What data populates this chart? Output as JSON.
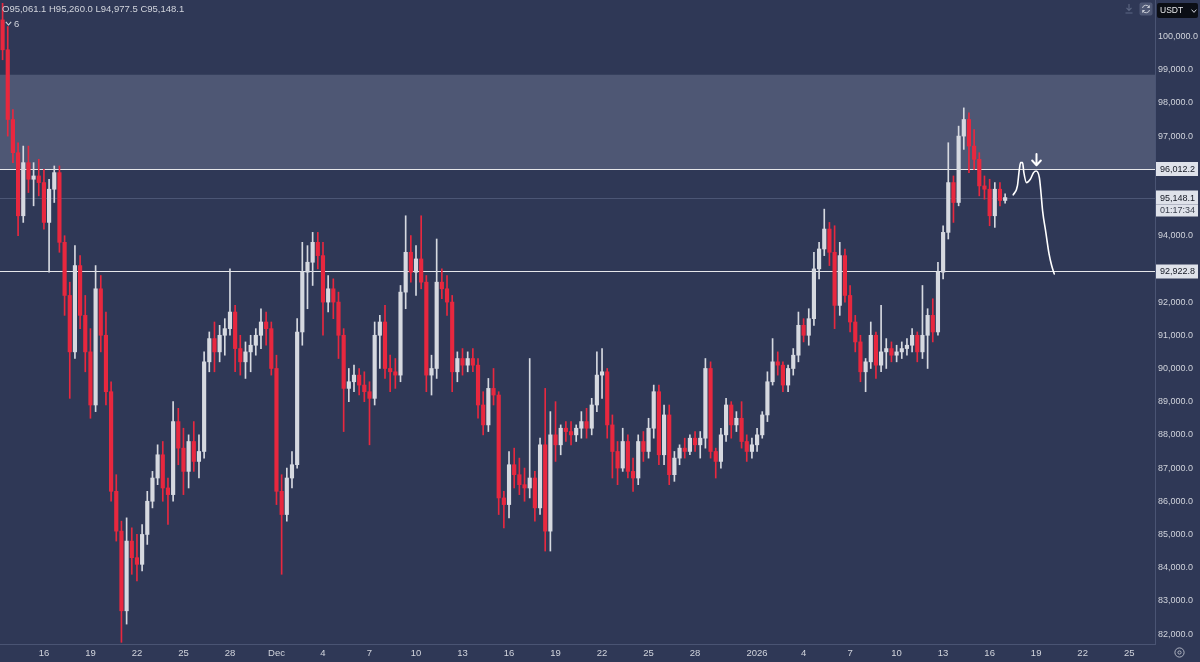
{
  "chart_data": {
    "type": "candlestick",
    "ylabel": "USDT",
    "annotations": [
      "O95,061.1 H95,260.0 L94,977.5 C95,148.1",
      "6",
      {
        "text": "01:17:34",
        "y": 95148.1
      }
    ],
    "xlim": [
      "2025-11-13T04:00",
      "2026-01-26T16:00"
    ],
    "xticks": [
      {
        "value": "2025-11-16",
        "label": "16"
      },
      {
        "value": "2025-11-19",
        "label": "19"
      },
      {
        "value": "2025-11-22",
        "label": "22"
      },
      {
        "value": "2025-11-25",
        "label": "25"
      },
      {
        "value": "2025-11-28",
        "label": "28"
      },
      {
        "value": "2025-12-01",
        "label": "Dec"
      },
      {
        "value": "2025-12-04",
        "label": "4"
      },
      {
        "value": "2025-12-07",
        "label": "7"
      },
      {
        "value": "2025-12-10",
        "label": "10"
      },
      {
        "value": "2025-12-13",
        "label": "13"
      },
      {
        "value": "2025-12-16",
        "label": "16"
      },
      {
        "value": "2025-12-19",
        "label": "19"
      },
      {
        "value": "2025-12-22",
        "label": "22"
      },
      {
        "value": "2025-12-25",
        "label": "25"
      },
      {
        "value": "2025-12-28",
        "label": "28"
      },
      {
        "value": "2026-01-01",
        "label": "2026"
      },
      {
        "value": "2026-01-04",
        "label": "4"
      },
      {
        "value": "2026-01-07",
        "label": "7"
      },
      {
        "value": "2026-01-10",
        "label": "10"
      },
      {
        "value": "2026-01-13",
        "label": "13"
      },
      {
        "value": "2026-01-16",
        "label": "16"
      },
      {
        "value": "2026-01-19",
        "label": "19"
      },
      {
        "value": "2026-01-22",
        "label": "22"
      },
      {
        "value": "2026-01-25",
        "label": "25"
      }
    ],
    "ylim": [
      81700,
      101100
    ],
    "yticks": [
      {
        "value": 82000,
        "label": "82,000.0"
      },
      {
        "value": 83000,
        "label": "83,000.0"
      },
      {
        "value": 84000,
        "label": "84,000.0"
      },
      {
        "value": 85000,
        "label": "85,000.0"
      },
      {
        "value": 86000,
        "label": "86,000.0"
      },
      {
        "value": 87000,
        "label": "87,000.0"
      },
      {
        "value": 88000,
        "label": "88,000.0"
      },
      {
        "value": 89000,
        "label": "89,000.0"
      },
      {
        "value": 90000,
        "label": "90,000.0"
      },
      {
        "value": 91000,
        "label": "91,000.0"
      },
      {
        "value": 92000,
        "label": "92,000.0"
      },
      {
        "value": 94000,
        "label": "94,000.0"
      },
      {
        "value": 97000,
        "label": "97,000.0"
      },
      {
        "value": 98000,
        "label": "98,000.0"
      },
      {
        "value": 99000,
        "label": "99,000.0"
      },
      {
        "value": 100000,
        "label": "100,000.0"
      }
    ],
    "bands": [
      {
        "axis": "y",
        "from": 96012.2,
        "to": 98850,
        "color": "#4e5774"
      }
    ],
    "ref_lines": [
      {
        "axis": "y",
        "value": 96012.2,
        "label": "96,012.2",
        "color": "#e6e7ea"
      },
      {
        "axis": "y",
        "value": 95148.1,
        "label": "95,148.1",
        "color": "#4c5675"
      },
      {
        "axis": "y",
        "value": 92922.8,
        "label": "92,922.8",
        "color": "#e6e7ea"
      }
    ],
    "series": [
      {
        "x": [
          "2025-11-13T08:00",
          "2025-11-13T16:00",
          "2025-11-14T00:00",
          "2025-11-14T08:00",
          "2025-11-14T16:00",
          "2025-11-15T00:00",
          "2025-11-15T08:00",
          "2025-11-15T16:00",
          "2025-11-16T00:00",
          "2025-11-16T08:00",
          "2025-11-16T16:00",
          "2025-11-17T00:00",
          "2025-11-17T08:00",
          "2025-11-17T16:00",
          "2025-11-18T00:00",
          "2025-11-18T08:00",
          "2025-11-18T16:00",
          "2025-11-19T00:00",
          "2025-11-19T08:00",
          "2025-11-19T16:00",
          "2025-11-20T00:00",
          "2025-11-20T08:00",
          "2025-11-20T16:00",
          "2025-11-21T00:00",
          "2025-11-21T08:00",
          "2025-11-21T16:00",
          "2025-11-22T00:00",
          "2025-11-22T08:00",
          "2025-11-22T16:00",
          "2025-11-23T00:00",
          "2025-11-23T08:00",
          "2025-11-23T16:00",
          "2025-11-24T00:00",
          "2025-11-24T08:00",
          "2025-11-24T16:00",
          "2025-11-25T00:00",
          "2025-11-25T08:00",
          "2025-11-25T16:00",
          "2025-11-26T00:00",
          "2025-11-26T08:00",
          "2025-11-26T16:00",
          "2025-11-27T00:00",
          "2025-11-27T08:00",
          "2025-11-27T16:00",
          "2025-11-28T00:00",
          "2025-11-28T08:00",
          "2025-11-28T16:00",
          "2025-11-29T00:00",
          "2025-11-29T08:00",
          "2025-11-29T16:00",
          "2025-11-30T00:00",
          "2025-11-30T08:00",
          "2025-11-30T16:00",
          "2025-12-01T00:00",
          "2025-12-01T08:00",
          "2025-12-01T16:00",
          "2025-12-02T00:00",
          "2025-12-02T08:00",
          "2025-12-02T16:00",
          "2025-12-03T00:00",
          "2025-12-03T08:00",
          "2025-12-03T16:00",
          "2025-12-04T00:00",
          "2025-12-04T08:00",
          "2025-12-04T16:00",
          "2025-12-05T00:00",
          "2025-12-05T08:00",
          "2025-12-05T16:00",
          "2025-12-06T00:00",
          "2025-12-06T08:00",
          "2025-12-06T16:00",
          "2025-12-07T00:00",
          "2025-12-07T08:00",
          "2025-12-07T16:00",
          "2025-12-08T00:00",
          "2025-12-08T08:00",
          "2025-12-08T16:00",
          "2025-12-09T00:00",
          "2025-12-09T08:00",
          "2025-12-09T16:00",
          "2025-12-10T00:00",
          "2025-12-10T08:00",
          "2025-12-10T16:00",
          "2025-12-11T00:00",
          "2025-12-11T08:00",
          "2025-12-11T16:00",
          "2025-12-12T00:00",
          "2025-12-12T08:00",
          "2025-12-12T16:00",
          "2025-12-13T00:00",
          "2025-12-13T08:00",
          "2025-12-13T16:00",
          "2025-12-14T00:00",
          "2025-12-14T08:00",
          "2025-12-14T16:00",
          "2025-12-15T00:00",
          "2025-12-15T08:00",
          "2025-12-15T16:00",
          "2025-12-16T00:00",
          "2025-12-16T08:00",
          "2025-12-16T16:00",
          "2025-12-17T00:00",
          "2025-12-17T08:00",
          "2025-12-17T16:00",
          "2025-12-18T00:00",
          "2025-12-18T08:00",
          "2025-12-18T16:00",
          "2025-12-19T00:00",
          "2025-12-19T08:00",
          "2025-12-19T16:00",
          "2025-12-20T00:00",
          "2025-12-20T08:00",
          "2025-12-20T16:00",
          "2025-12-21T00:00",
          "2025-12-21T08:00",
          "2025-12-21T16:00",
          "2025-12-22T00:00",
          "2025-12-22T08:00",
          "2025-12-22T16:00",
          "2025-12-23T00:00",
          "2025-12-23T08:00",
          "2025-12-23T16:00",
          "2025-12-24T00:00",
          "2025-12-24T08:00",
          "2025-12-24T16:00",
          "2025-12-25T00:00",
          "2025-12-25T08:00",
          "2025-12-25T16:00",
          "2025-12-26T00:00",
          "2025-12-26T08:00",
          "2025-12-26T16:00",
          "2025-12-27T00:00",
          "2025-12-27T08:00",
          "2025-12-27T16:00",
          "2025-12-28T00:00",
          "2025-12-28T08:00",
          "2025-12-28T16:00",
          "2025-12-29T00:00",
          "2025-12-29T08:00",
          "2025-12-29T16:00",
          "2025-12-30T00:00",
          "2025-12-30T08:00",
          "2025-12-30T16:00",
          "2025-12-31T00:00",
          "2025-12-31T08:00",
          "2025-12-31T16:00",
          "2026-01-01T00:00",
          "2026-01-01T08:00",
          "2026-01-01T16:00",
          "2026-01-02T00:00",
          "2026-01-02T08:00",
          "2026-01-02T16:00",
          "2026-01-03T00:00",
          "2026-01-03T08:00",
          "2026-01-03T16:00",
          "2026-01-04T00:00",
          "2026-01-04T08:00",
          "2026-01-04T16:00",
          "2026-01-05T00:00",
          "2026-01-05T08:00",
          "2026-01-05T16:00",
          "2026-01-06T00:00",
          "2026-01-06T08:00",
          "2026-01-06T16:00",
          "2026-01-07T00:00",
          "2026-01-07T08:00",
          "2026-01-07T16:00",
          "2026-01-08T00:00",
          "2026-01-08T08:00",
          "2026-01-08T16:00",
          "2026-01-09T00:00",
          "2026-01-09T08:00",
          "2026-01-09T16:00",
          "2026-01-10T00:00",
          "2026-01-10T08:00",
          "2026-01-10T16:00",
          "2026-01-11T00:00",
          "2026-01-11T08:00",
          "2026-01-11T16:00",
          "2026-01-12T00:00",
          "2026-01-12T08:00",
          "2026-01-12T16:00",
          "2026-01-13T00:00",
          "2026-01-13T08:00",
          "2026-01-13T16:00",
          "2026-01-14T00:00",
          "2026-01-14T08:00",
          "2026-01-14T16:00",
          "2026-01-15T00:00",
          "2026-01-15T08:00",
          "2026-01-15T16:00",
          "2026-01-16T00:00",
          "2026-01-16T08:00",
          "2026-01-16T16:00",
          "2026-01-17T00:00"
        ],
        "ohlc": [
          [
            100500,
            101000,
            99300,
            99600
          ],
          [
            99600,
            100300,
            97000,
            97500
          ],
          [
            97500,
            97800,
            96200,
            96500
          ],
          [
            96500,
            96800,
            94000,
            94600
          ],
          [
            94600,
            96700,
            94400,
            96200
          ],
          [
            96200,
            96700,
            95300,
            95700
          ],
          [
            95700,
            96200,
            94900,
            95800
          ],
          [
            95800,
            96300,
            95200,
            95600
          ],
          [
            95600,
            96000,
            94200,
            94400
          ],
          [
            94400,
            95700,
            92900,
            95400
          ],
          [
            95400,
            96100,
            95000,
            95900
          ],
          [
            95900,
            96100,
            93500,
            93800
          ],
          [
            93800,
            94000,
            91600,
            92200
          ],
          [
            92200,
            92600,
            89100,
            90500
          ],
          [
            90500,
            93700,
            90300,
            93100
          ],
          [
            93100,
            93400,
            91200,
            91600
          ],
          [
            91600,
            92200,
            89900,
            90500
          ],
          [
            90500,
            91200,
            88500,
            88900
          ],
          [
            88900,
            93100,
            88700,
            92400
          ],
          [
            92400,
            92800,
            90500,
            91000
          ],
          [
            91000,
            91700,
            88900,
            89300
          ],
          [
            89300,
            89600,
            86000,
            86300
          ],
          [
            86300,
            86800,
            84800,
            85100
          ],
          [
            85100,
            85400,
            81750,
            82700
          ],
          [
            82700,
            85500,
            82300,
            84800
          ],
          [
            84800,
            85200,
            83800,
            84300
          ],
          [
            84300,
            85000,
            83600,
            84100
          ],
          [
            84100,
            85300,
            83900,
            85000
          ],
          [
            85000,
            86300,
            84700,
            86000
          ],
          [
            86000,
            86900,
            85800,
            86700
          ],
          [
            86700,
            87700,
            86500,
            87400
          ],
          [
            87400,
            87800,
            86000,
            86400
          ],
          [
            86400,
            86700,
            85300,
            86200
          ],
          [
            86200,
            89000,
            86000,
            88400
          ],
          [
            88400,
            88800,
            87100,
            87600
          ],
          [
            87600,
            88200,
            86200,
            86900
          ],
          [
            86900,
            88000,
            86400,
            87800
          ],
          [
            87800,
            88400,
            86900,
            87200
          ],
          [
            87200,
            88000,
            86700,
            87500
          ],
          [
            87500,
            90500,
            87300,
            90200
          ],
          [
            90200,
            91100,
            89900,
            90900
          ],
          [
            90900,
            91400,
            89900,
            90500
          ],
          [
            90500,
            91300,
            90200,
            91000
          ],
          [
            91000,
            91500,
            90400,
            91200
          ],
          [
            91200,
            93000,
            91000,
            91700
          ],
          [
            91700,
            91900,
            89900,
            90600
          ],
          [
            90600,
            91000,
            89800,
            90200
          ],
          [
            90200,
            90800,
            89700,
            90500
          ],
          [
            90500,
            91000,
            89900,
            90700
          ],
          [
            90700,
            91200,
            90400,
            91000
          ],
          [
            91000,
            91800,
            90600,
            91400
          ],
          [
            91400,
            91700,
            90700,
            91200
          ],
          [
            91200,
            91400,
            89800,
            90000
          ],
          [
            90000,
            90400,
            85900,
            86300
          ],
          [
            86300,
            86800,
            83800,
            85600
          ],
          [
            85600,
            87000,
            85400,
            86700
          ],
          [
            86700,
            87500,
            86400,
            87100
          ],
          [
            87100,
            91500,
            87000,
            91100
          ],
          [
            91100,
            93800,
            90700,
            92900
          ],
          [
            92900,
            93700,
            91800,
            93200
          ],
          [
            93200,
            94100,
            92500,
            93800
          ],
          [
            93800,
            94100,
            93000,
            93400
          ],
          [
            93400,
            93800,
            91000,
            92000
          ],
          [
            92000,
            92800,
            91700,
            92400
          ],
          [
            92400,
            92700,
            91500,
            92000
          ],
          [
            92000,
            92300,
            90300,
            91000
          ],
          [
            91000,
            91200,
            88100,
            89400
          ],
          [
            89400,
            90000,
            89000,
            89600
          ],
          [
            89600,
            90100,
            89300,
            89800
          ],
          [
            89800,
            90000,
            89200,
            89500
          ],
          [
            89500,
            89900,
            89000,
            89300
          ],
          [
            89300,
            89600,
            87700,
            89100
          ],
          [
            89100,
            91400,
            88900,
            91000
          ],
          [
            91000,
            91600,
            90000,
            91400
          ],
          [
            91400,
            91900,
            89700,
            90000
          ],
          [
            90000,
            90400,
            89300,
            89900
          ],
          [
            89900,
            90300,
            89400,
            89800
          ],
          [
            89800,
            92500,
            89600,
            92300
          ],
          [
            92300,
            94600,
            91800,
            93500
          ],
          [
            93500,
            94000,
            92600,
            92900
          ],
          [
            92900,
            93700,
            92200,
            93300
          ],
          [
            93300,
            94600,
            92400,
            92600
          ],
          [
            92600,
            92800,
            89300,
            89800
          ],
          [
            89800,
            90400,
            89200,
            90000
          ],
          [
            90000,
            93900,
            89700,
            92600
          ],
          [
            92600,
            93000,
            92100,
            92400
          ],
          [
            92400,
            92800,
            91600,
            92000
          ],
          [
            92000,
            92200,
            89300,
            89900
          ],
          [
            89900,
            90500,
            89600,
            90300
          ],
          [
            90300,
            90600,
            89800,
            90100
          ],
          [
            90100,
            90500,
            89900,
            90300
          ],
          [
            90300,
            90600,
            89900,
            90100
          ],
          [
            90100,
            90300,
            88500,
            88900
          ],
          [
            88900,
            89300,
            88000,
            88300
          ],
          [
            88300,
            89700,
            88100,
            89400
          ],
          [
            89400,
            90000,
            88900,
            89200
          ],
          [
            89200,
            89300,
            85600,
            86100
          ],
          [
            86100,
            86300,
            85200,
            85900
          ],
          [
            85900,
            87500,
            85500,
            87100
          ],
          [
            87100,
            87600,
            86400,
            86800
          ],
          [
            86800,
            87300,
            86200,
            86500
          ],
          [
            86500,
            87000,
            86000,
            86400
          ],
          [
            86400,
            90300,
            86100,
            86700
          ],
          [
            86700,
            86900,
            85400,
            85800
          ],
          [
            85800,
            87900,
            85600,
            87700
          ],
          [
            87700,
            89400,
            84500,
            85100
          ],
          [
            85100,
            88700,
            84500,
            88000
          ],
          [
            88000,
            89000,
            87200,
            87700
          ],
          [
            87700,
            88300,
            87400,
            88200
          ],
          [
            88200,
            88400,
            87800,
            88100
          ],
          [
            88100,
            88400,
            87700,
            88000
          ],
          [
            88000,
            88300,
            87800,
            88200
          ],
          [
            88200,
            88700,
            87900,
            88400
          ],
          [
            88400,
            88800,
            87900,
            88200
          ],
          [
            88200,
            89100,
            88000,
            88900
          ],
          [
            88900,
            90500,
            88700,
            89800
          ],
          [
            89800,
            90600,
            89100,
            89900
          ],
          [
            89900,
            90000,
            87900,
            88300
          ],
          [
            88300,
            88600,
            86700,
            87500
          ],
          [
            87500,
            87800,
            86500,
            87000
          ],
          [
            87000,
            88200,
            86900,
            87800
          ],
          [
            87800,
            88000,
            86700,
            86900
          ],
          [
            86900,
            87300,
            86300,
            86700
          ],
          [
            86700,
            88000,
            86500,
            87800
          ],
          [
            87800,
            88100,
            87200,
            87500
          ],
          [
            87500,
            88500,
            87300,
            88200
          ],
          [
            88200,
            89500,
            87900,
            89300
          ],
          [
            89300,
            89500,
            87100,
            87400
          ],
          [
            87400,
            88900,
            87100,
            88600
          ],
          [
            88600,
            88900,
            86500,
            86800
          ],
          [
            86800,
            87500,
            86600,
            87300
          ],
          [
            87300,
            87700,
            87100,
            87600
          ],
          [
            87600,
            87900,
            87300,
            87500
          ],
          [
            87500,
            88000,
            87400,
            87900
          ],
          [
            87900,
            88100,
            87500,
            87700
          ],
          [
            87700,
            88100,
            87300,
            87900
          ],
          [
            87900,
            90300,
            87600,
            90000
          ],
          [
            90000,
            90200,
            87300,
            87500
          ],
          [
            87500,
            87600,
            86700,
            87200
          ],
          [
            87200,
            88200,
            87000,
            88000
          ],
          [
            88000,
            89100,
            87800,
            88900
          ],
          [
            88900,
            89000,
            87900,
            88300
          ],
          [
            88300,
            88700,
            88100,
            88500
          ],
          [
            88500,
            89000,
            87600,
            87800
          ],
          [
            87800,
            88000,
            87200,
            87500
          ],
          [
            87500,
            87900,
            87300,
            87700
          ],
          [
            87700,
            88200,
            87500,
            88000
          ],
          [
            88000,
            88700,
            87900,
            88600
          ],
          [
            88600,
            89900,
            88400,
            89600
          ],
          [
            89600,
            90900,
            89500,
            90200
          ],
          [
            90200,
            90500,
            89800,
            90100
          ],
          [
            90100,
            90200,
            89300,
            89500
          ],
          [
            89500,
            90100,
            89300,
            90000
          ],
          [
            90000,
            90600,
            89800,
            90400
          ],
          [
            90400,
            91700,
            90200,
            91300
          ],
          [
            91300,
            91500,
            90800,
            91000
          ],
          [
            91000,
            91800,
            90700,
            91500
          ],
          [
            91500,
            93500,
            91300,
            93000
          ],
          [
            93000,
            93800,
            92700,
            93600
          ],
          [
            93600,
            94800,
            93400,
            94200
          ],
          [
            94200,
            94400,
            93100,
            93500
          ],
          [
            93500,
            94300,
            91200,
            91900
          ],
          [
            91900,
            93800,
            91600,
            93400
          ],
          [
            93400,
            93600,
            92000,
            92200
          ],
          [
            92200,
            92500,
            91100,
            91400
          ],
          [
            91400,
            91600,
            90500,
            90800
          ],
          [
            90800,
            91000,
            89600,
            89900
          ],
          [
            89900,
            90300,
            89300,
            90200
          ],
          [
            90200,
            91400,
            90000,
            91000
          ],
          [
            91000,
            91100,
            89700,
            90100
          ],
          [
            90100,
            91900,
            89900,
            90500
          ],
          [
            90500,
            90900,
            90000,
            90600
          ],
          [
            90600,
            90800,
            90200,
            90400
          ],
          [
            90400,
            90700,
            90200,
            90500
          ],
          [
            90500,
            90800,
            90300,
            90600
          ],
          [
            90600,
            90900,
            90400,
            90700
          ],
          [
            90700,
            91200,
            90500,
            91000
          ],
          [
            91000,
            91100,
            90200,
            90500
          ],
          [
            90500,
            92500,
            90300,
            91000
          ],
          [
            91000,
            91800,
            90000,
            91600
          ],
          [
            91600,
            92100,
            90800,
            91100
          ],
          [
            91100,
            93200,
            91000,
            92900
          ],
          [
            92900,
            94300,
            92700,
            94100
          ],
          [
            94100,
            96800,
            93900,
            95600
          ],
          [
            95600,
            95800,
            94400,
            95000
          ],
          [
            95000,
            97300,
            94900,
            97000
          ],
          [
            97000,
            97850,
            96600,
            97500
          ],
          [
            97500,
            97700,
            95900,
            96700
          ],
          [
            96700,
            97200,
            96000,
            96300
          ],
          [
            96300,
            96500,
            95200,
            95500
          ],
          [
            95500,
            95800,
            95100,
            95400
          ],
          [
            95400,
            95700,
            94300,
            94600
          ],
          [
            94600,
            95600,
            94250,
            95400
          ],
          [
            95400,
            95600,
            94900,
            95061.1
          ],
          [
            95061.1,
            95260.0,
            94977.5,
            95148.1
          ]
        ],
        "colors": [
          "#e8283f",
          "#e8283f",
          "#e8283f",
          "#e8283f",
          "#d6d9e0",
          "#e8283f",
          "#d6d9e0",
          "#e8283f",
          "#e8283f",
          "#d6d9e0",
          "#d6d9e0",
          "#e8283f",
          "#e8283f",
          "#e8283f",
          "#d6d9e0",
          "#e8283f",
          "#e8283f",
          "#e8283f",
          "#d6d9e0",
          "#e8283f",
          "#e8283f",
          "#e8283f",
          "#e8283f",
          "#e8283f",
          "#d6d9e0",
          "#e8283f",
          "#e8283f",
          "#d6d9e0",
          "#d6d9e0",
          "#d6d9e0",
          "#d6d9e0",
          "#e8283f",
          "#e8283f",
          "#d6d9e0",
          "#e8283f",
          "#e8283f",
          "#d6d9e0",
          "#e8283f",
          "#d6d9e0",
          "#d6d9e0",
          "#d6d9e0",
          "#e8283f",
          "#d6d9e0",
          "#d6d9e0",
          "#d6d9e0",
          "#e8283f",
          "#e8283f",
          "#d6d9e0",
          "#d6d9e0",
          "#d6d9e0",
          "#d6d9e0",
          "#e8283f",
          "#e8283f",
          "#e8283f",
          "#e8283f",
          "#d6d9e0",
          "#d6d9e0",
          "#d6d9e0",
          "#d6d9e0",
          "#d6d9e0",
          "#d6d9e0",
          "#e8283f",
          "#e8283f",
          "#d6d9e0",
          "#e8283f",
          "#e8283f",
          "#e8283f",
          "#d6d9e0",
          "#d6d9e0",
          "#e8283f",
          "#e8283f",
          "#e8283f",
          "#d6d9e0",
          "#d6d9e0",
          "#e8283f",
          "#e8283f",
          "#e8283f",
          "#d6d9e0",
          "#d6d9e0",
          "#e8283f",
          "#d6d9e0",
          "#e8283f",
          "#e8283f",
          "#d6d9e0",
          "#d6d9e0",
          "#e8283f",
          "#e8283f",
          "#e8283f",
          "#d6d9e0",
          "#e8283f",
          "#d6d9e0",
          "#e8283f",
          "#e8283f",
          "#e8283f",
          "#d6d9e0",
          "#e8283f",
          "#e8283f",
          "#e8283f",
          "#d6d9e0",
          "#e8283f",
          "#e8283f",
          "#e8283f",
          "#d6d9e0",
          "#e8283f",
          "#d6d9e0",
          "#e8283f",
          "#d6d9e0",
          "#e8283f",
          "#d6d9e0",
          "#e8283f",
          "#e8283f",
          "#d6d9e0",
          "#d6d9e0",
          "#e8283f",
          "#d6d9e0",
          "#d6d9e0",
          "#d6d9e0",
          "#e8283f",
          "#e8283f",
          "#e8283f",
          "#d6d9e0",
          "#e8283f",
          "#e8283f",
          "#d6d9e0",
          "#e8283f",
          "#d6d9e0",
          "#d6d9e0",
          "#e8283f",
          "#d6d9e0",
          "#e8283f",
          "#d6d9e0",
          "#d6d9e0",
          "#e8283f",
          "#d6d9e0",
          "#e8283f",
          "#d6d9e0",
          "#d6d9e0",
          "#e8283f",
          "#e8283f",
          "#d6d9e0",
          "#d6d9e0",
          "#e8283f",
          "#d6d9e0",
          "#e8283f",
          "#e8283f",
          "#d6d9e0",
          "#d6d9e0",
          "#d6d9e0",
          "#d6d9e0",
          "#d6d9e0",
          "#e8283f",
          "#e8283f",
          "#d6d9e0",
          "#d6d9e0",
          "#d6d9e0",
          "#e8283f",
          "#d6d9e0",
          "#d6d9e0",
          "#d6d9e0",
          "#d6d9e0",
          "#e8283f",
          "#e8283f",
          "#d6d9e0",
          "#e8283f",
          "#e8283f",
          "#e8283f",
          "#e8283f",
          "#d6d9e0",
          "#d6d9e0",
          "#e8283f",
          "#d6d9e0",
          "#d6d9e0",
          "#e8283f",
          "#d6d9e0",
          "#d6d9e0",
          "#d6d9e0",
          "#d6d9e0",
          "#e8283f",
          "#d6d9e0",
          "#d6d9e0",
          "#e8283f",
          "#d6d9e0",
          "#d6d9e0",
          "#d6d9e0",
          "#e8283f",
          "#d6d9e0",
          "#d6d9e0",
          "#e8283f",
          "#e8283f",
          "#e8283f",
          "#e8283f",
          "#e8283f",
          "#d6d9e0",
          "#e8283f",
          "#d6d9e0"
        ]
      },
      {
        "type": "line",
        "color": "#ffffff",
        "x": [
          "2026-01-17T12:30",
          "2026-01-17T19:00",
          "2026-01-17T22:00",
          "2026-01-18T00:00",
          "2026-01-18T03:00",
          "2026-01-18T05:00",
          "2026-01-18T09:00",
          "2026-01-18T15:00",
          "2026-01-18T20:00",
          "2026-01-19T00:00",
          "2026-01-19T05:00",
          "2026-01-19T07:00",
          "2026-01-19T10:00",
          "2026-01-19T15:00",
          "2026-01-19T20:00",
          "2026-01-20T00:00",
          "2026-01-20T04:00"
        ],
        "values": [
          95230,
          95500,
          96000,
          96200,
          96200,
          95900,
          95600,
          95700,
          95900,
          95950,
          95750,
          95400,
          94750,
          94100,
          93450,
          93100,
          92850
        ]
      }
    ]
  }
}
